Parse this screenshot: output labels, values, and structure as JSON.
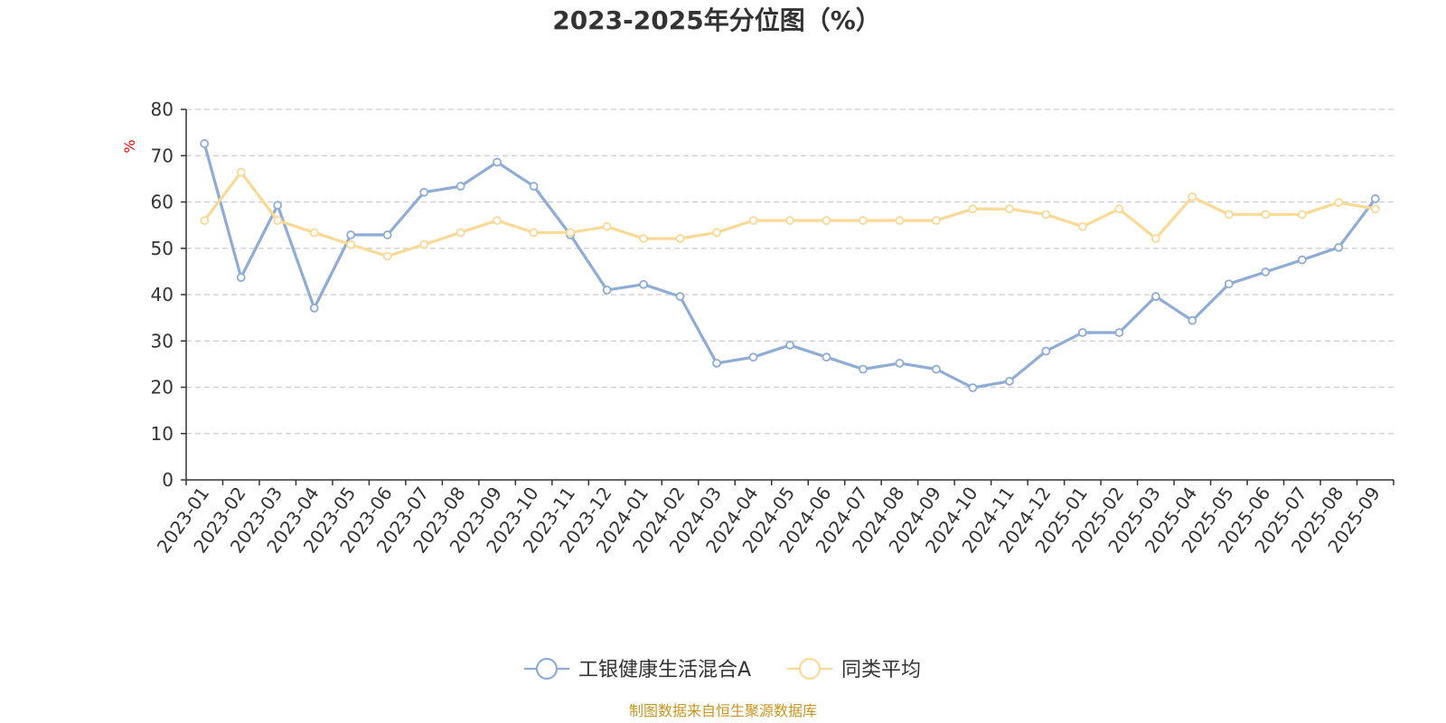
{
  "chart_data": {
    "type": "line",
    "title": "2023-2025年分位图（%）",
    "ylabel": "%",
    "xlabel": "",
    "ylim": [
      0,
      80
    ],
    "yticks": [
      0,
      10,
      20,
      30,
      40,
      50,
      60,
      70,
      80
    ],
    "grid": "horizontal-dashed",
    "legend_position": "bottom-center",
    "categories": [
      "2023-01",
      "2023-02",
      "2023-03",
      "2023-04",
      "2023-05",
      "2023-06",
      "2023-07",
      "2023-08",
      "2023-09",
      "2023-10",
      "2023-11",
      "2023-12",
      "2024-01",
      "2024-02",
      "2024-03",
      "2024-04",
      "2024-05",
      "2024-06",
      "2024-07",
      "2024-08",
      "2024-09",
      "2024-10",
      "2024-11",
      "2024-12",
      "2025-01",
      "2025-02",
      "2025-03",
      "2025-04",
      "2025-05",
      "2025-06",
      "2025-07",
      "2025-08",
      "2025-09"
    ],
    "series": [
      {
        "name": "工银健康生活混合A",
        "color": "#8eacd6",
        "values": [
          72.6,
          43.7,
          59.3,
          37.1,
          52.9,
          52.9,
          62.1,
          63.4,
          68.6,
          63.4,
          52.9,
          41.0,
          42.2,
          39.6,
          25.2,
          26.5,
          29.1,
          26.5,
          23.9,
          25.2,
          23.9,
          19.9,
          21.3,
          27.8,
          31.8,
          31.8,
          39.6,
          34.4,
          42.3,
          44.9,
          47.5,
          50.2,
          60.7
        ]
      },
      {
        "name": "同类平均",
        "color": "#f9d995",
        "values": [
          56.0,
          66.4,
          56.0,
          53.4,
          50.8,
          48.3,
          50.8,
          53.4,
          56.0,
          53.4,
          53.4,
          54.7,
          52.1,
          52.1,
          53.4,
          56.0,
          56.0,
          56.0,
          56.0,
          56.0,
          56.0,
          58.5,
          58.5,
          57.3,
          54.7,
          58.5,
          52.1,
          61.1,
          57.3,
          57.3,
          57.3,
          59.9,
          58.5
        ]
      }
    ]
  },
  "source_text": "制图数据来自恒生聚源数据库"
}
